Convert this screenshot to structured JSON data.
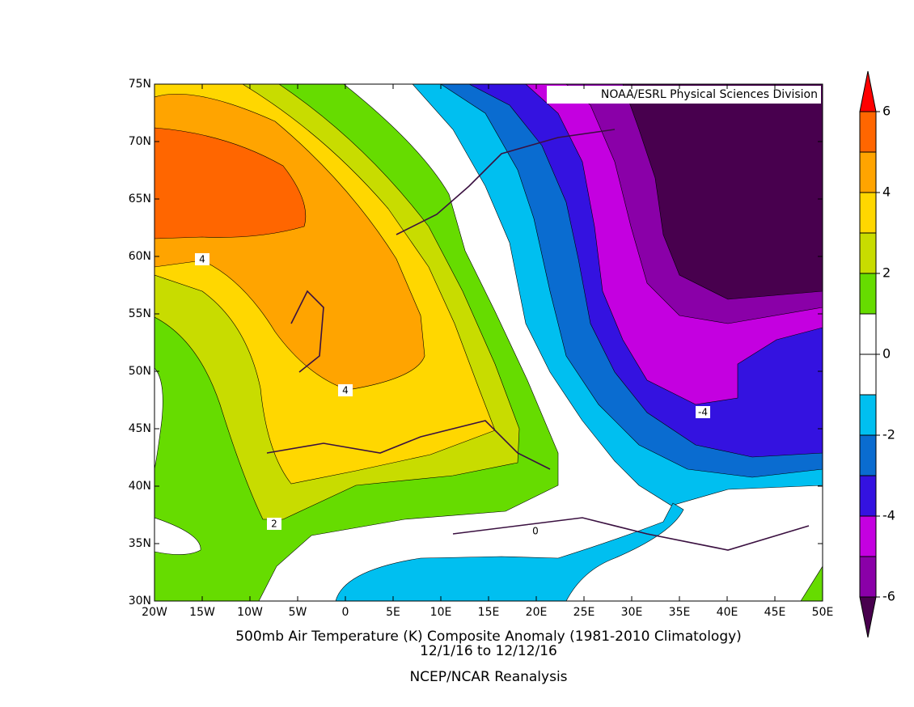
{
  "map": {
    "credit": "NOAA/ESRL Physical Sciences Division",
    "title_lines": [
      "500mb Air Temperature (K) Composite Anomaly (1981-2010 Climatology)",
      "12/1/16  to 12/12/16",
      "NCEP/NCAR Reanalysis"
    ],
    "xlim": [
      -20,
      50
    ],
    "ylim": [
      30,
      75
    ],
    "xticks": [
      {
        "value": -20,
        "label": "20W"
      },
      {
        "value": -15,
        "label": "15W"
      },
      {
        "value": -10,
        "label": "10W"
      },
      {
        "value": -5,
        "label": "5W"
      },
      0,
      {
        "value": 5,
        "label": "5E"
      },
      {
        "value": 10,
        "label": "10E"
      },
      {
        "value": 15,
        "label": "15E"
      },
      {
        "value": 20,
        "label": "20E"
      },
      {
        "value": 25,
        "label": "25E"
      },
      {
        "value": 30,
        "label": "30E"
      },
      {
        "value": 35,
        "label": "35E"
      },
      {
        "value": 40,
        "label": "40E"
      },
      {
        "value": 45,
        "label": "45E"
      },
      {
        "value": 50,
        "label": "50E"
      }
    ],
    "yticks": [
      {
        "value": 30,
        "label": "30N"
      },
      {
        "value": 35,
        "label": "35N"
      },
      {
        "value": 40,
        "label": "40N"
      },
      {
        "value": 45,
        "label": "45N"
      },
      {
        "value": 50,
        "label": "50N"
      },
      {
        "value": 55,
        "label": "55N"
      },
      {
        "value": 60,
        "label": "60N"
      },
      {
        "value": 65,
        "label": "65N"
      },
      {
        "value": 70,
        "label": "70N"
      },
      {
        "value": 75,
        "label": "75N"
      }
    ],
    "contour_labels": [
      4,
      4,
      2,
      0,
      -4
    ]
  },
  "colorbar": {
    "levels": [
      -6,
      -5,
      -4,
      -3,
      -2,
      -1,
      0,
      1,
      2,
      3,
      4,
      5,
      6
    ],
    "colors": [
      "#48004e",
      "#8a00a8",
      "#c400e0",
      "#3412e0",
      "#0a6cd0",
      "#00bff0",
      "#ffffff",
      "#ffffff",
      "#66dc00",
      "#c8dc00",
      "#ffd700",
      "#ffa400",
      "#ff6600",
      "#ff0000"
    ],
    "ticks": [
      -6,
      -4,
      -2,
      0,
      2,
      4,
      6
    ]
  }
}
